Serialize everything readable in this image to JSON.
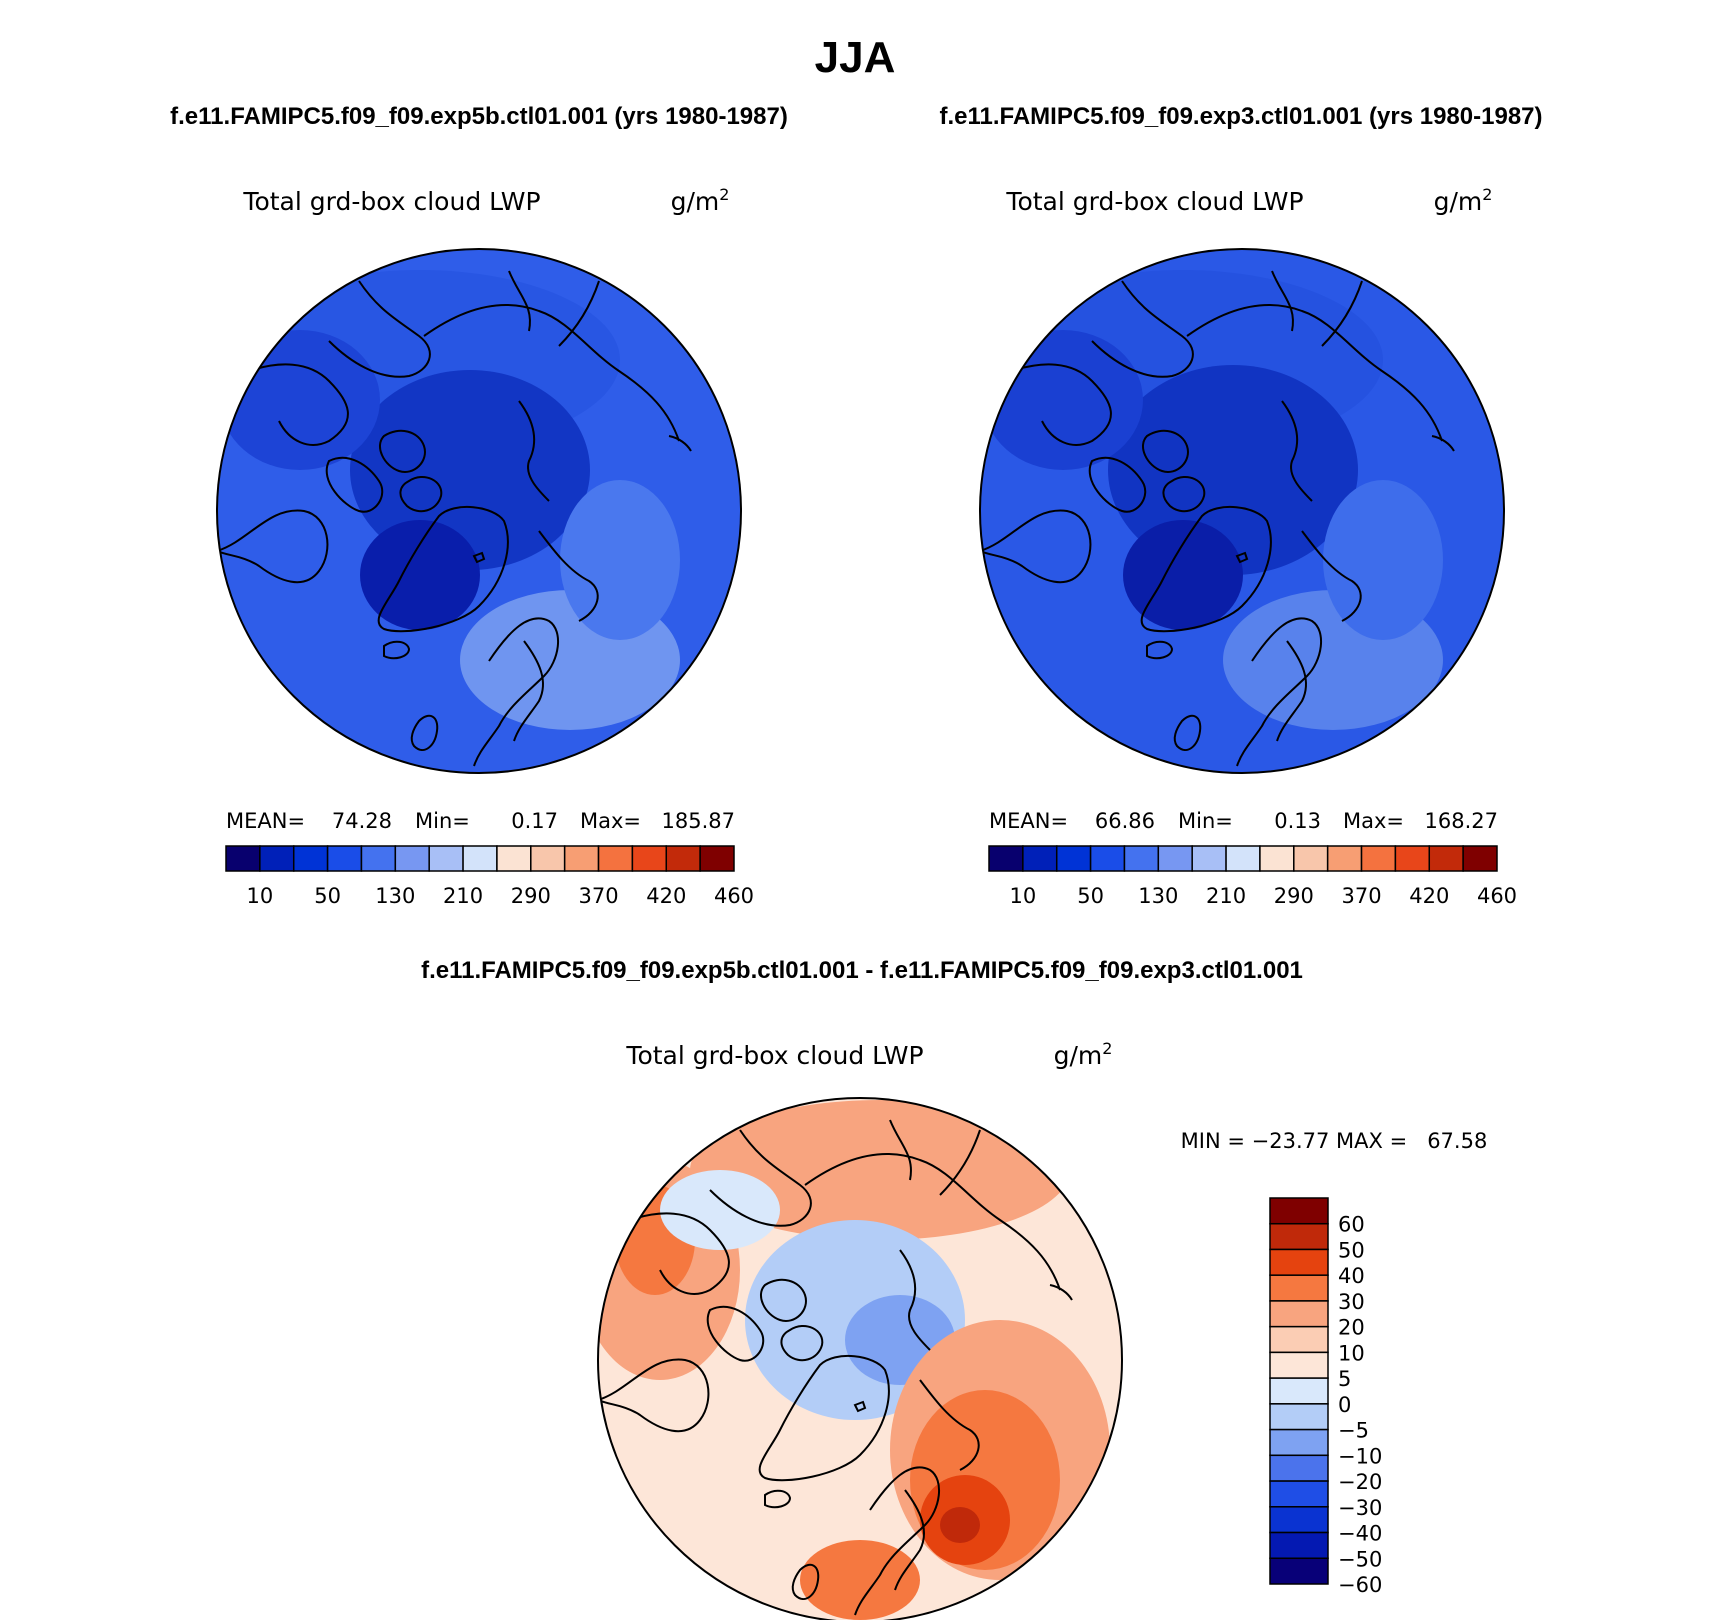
{
  "main_title": "JJA",
  "chart_data": [
    {
      "type": "polar-contour",
      "panel": "top-left",
      "case_title": "f.e11.FAMIPC5.f09_f09.exp5b.ctl01.001 (yrs 1980-1987)",
      "variable": "Total grd-box cloud LWP",
      "units": "g/m",
      "units_sup": "2",
      "stats": {
        "mean_label": "MEAN=",
        "mean": "74.28",
        "min_label": "Min=",
        "min": "0.17",
        "max_label": "Max=",
        "max": "185.87"
      },
      "colorbar": {
        "orientation": "horizontal",
        "colors": [
          "#08006e",
          "#0020b8",
          "#0033d6",
          "#1a4de8",
          "#4472ef",
          "#7797f2",
          "#a8bff6",
          "#d3e3fa",
          "#fbe3d3",
          "#f8c6ab",
          "#f79e73",
          "#f4723f",
          "#e8461a",
          "#c22a0a",
          "#7f0000"
        ],
        "tick_labels": [
          "10",
          "50",
          "130",
          "210",
          "290",
          "370",
          "420",
          "460"
        ]
      },
      "dominant_colors": {
        "ocean": "#2f5de9",
        "pole": "#1236c4",
        "greenland": "#091eab",
        "pacific": "#2856e3",
        "europe": "#6f95f0"
      }
    },
    {
      "type": "polar-contour",
      "panel": "top-right",
      "case_title": "f.e11.FAMIPC5.f09_f09.exp3.ctl01.001 (yrs 1980-1987)",
      "variable": "Total grd-box cloud LWP",
      "units": "g/m",
      "units_sup": "2",
      "stats": {
        "mean_label": "MEAN=",
        "mean": "66.86",
        "min_label": "Min=",
        "min": "0.13",
        "max_label": "Max=",
        "max": "168.27"
      },
      "colorbar": {
        "orientation": "horizontal",
        "colors": [
          "#08006e",
          "#0020b8",
          "#0033d6",
          "#1a4de8",
          "#4472ef",
          "#7797f2",
          "#a8bff6",
          "#d3e3fa",
          "#fbe3d3",
          "#f8c6ab",
          "#f79e73",
          "#f4723f",
          "#e8461a",
          "#c22a0a",
          "#7f0000"
        ],
        "tick_labels": [
          "10",
          "50",
          "130",
          "210",
          "290",
          "370",
          "420",
          "460"
        ]
      },
      "dominant_colors": {
        "ocean": "#2a58e6",
        "pole": "#1134c2",
        "greenland": "#0a1ea8",
        "pacific": "#2552e0",
        "europe": "#5882ec"
      }
    },
    {
      "type": "polar-contour-difference",
      "panel": "bottom",
      "case_title": "f.e11.FAMIPC5.f09_f09.exp5b.ctl01.001 - f.e11.FAMIPC5.f09_f09.exp3.ctl01.001",
      "variable": "Total grd-box cloud LWP",
      "units": "g/m",
      "units_sup": "2",
      "stats_text": "MIN = −23.77 MAX =   67.58",
      "colorbar": {
        "orientation": "vertical",
        "colors_top_to_bottom": [
          "#7f0000",
          "#c0290a",
          "#e5430f",
          "#f57840",
          "#f8a47f",
          "#fbcdb4",
          "#fde6d8",
          "#d9e8fb",
          "#b3cdf7",
          "#7ea2f2",
          "#4b73ec",
          "#1f4ee6",
          "#0a33d1",
          "#0419b2",
          "#080078"
        ],
        "tick_labels": [
          "60",
          "50",
          "40",
          "30",
          "20",
          "10",
          "5",
          "0",
          "−5",
          "−10",
          "−20",
          "−30",
          "−40",
          "−50",
          "−60"
        ]
      },
      "dominant_colors": {
        "background": "#fde6d8",
        "neg_center": "#b3cdf7",
        "neg_strong": "#7ea2f2",
        "pos_moderate": "#f8a47f",
        "pos_strong": "#f57840",
        "pos_max": "#c0290a"
      }
    }
  ]
}
